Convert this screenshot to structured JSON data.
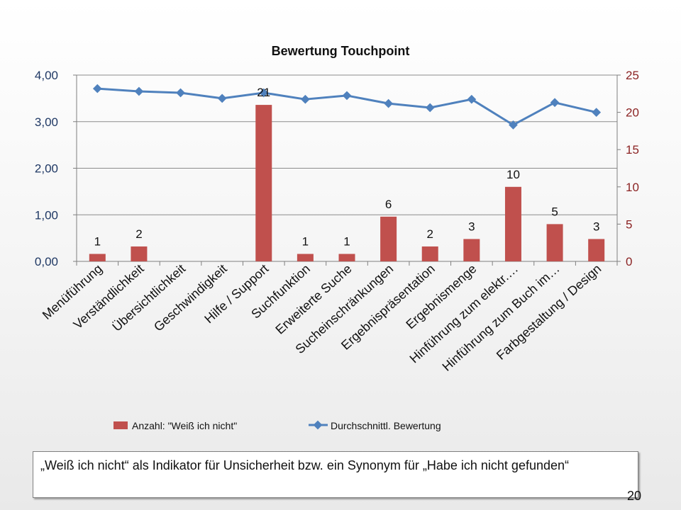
{
  "chart_data": {
    "type": "bar+line",
    "title": "Bewertung Touchpoint",
    "categories": [
      "Menüführung",
      "Verständlichkeit",
      "Übersichtlichkeit",
      "Geschwindigkeit",
      "Hilfe / Support",
      "Suchfunktion",
      "Erweiterte Suche",
      "Sucheinschränkungen",
      "Ergebnispräsentation",
      "Ergebnismenge",
      "Hinführung zum elektr.…",
      "Hinführung zum Buch im…",
      "Farbgestaltung / Design"
    ],
    "left_axis": {
      "ylim": [
        0,
        4
      ],
      "ticks": [
        "0,00",
        "1,00",
        "2,00",
        "3,00",
        "4,00"
      ]
    },
    "right_axis": {
      "ylim": [
        0,
        25
      ],
      "ticks": [
        "0",
        "5",
        "10",
        "15",
        "20",
        "25"
      ]
    },
    "bar_series": {
      "name": "Anzahl: \"Weiß ich nicht\"",
      "axis": "right",
      "color": "#c0504d",
      "values": [
        1,
        2,
        0,
        0,
        21,
        1,
        1,
        6,
        2,
        3,
        10,
        5,
        3
      ],
      "labels": [
        "1",
        "2",
        "",
        "",
        "21",
        "1",
        "1",
        "6",
        "2",
        "3",
        "10",
        "5",
        "3"
      ]
    },
    "line_series": {
      "name": "Durchschnittl. Bewertung",
      "axis": "left",
      "color": "#4f81bd",
      "values": [
        3.71,
        3.65,
        3.62,
        3.5,
        3.62,
        3.48,
        3.56,
        3.39,
        3.3,
        3.48,
        2.93,
        3.41,
        3.2
      ]
    },
    "grid": true,
    "legend": "bottom"
  },
  "note": "„Weiß ich nicht“ als Indikator für Unsicherheit bzw. ein Synonym für „Habe ich nicht gefunden“",
  "page_number": "20"
}
